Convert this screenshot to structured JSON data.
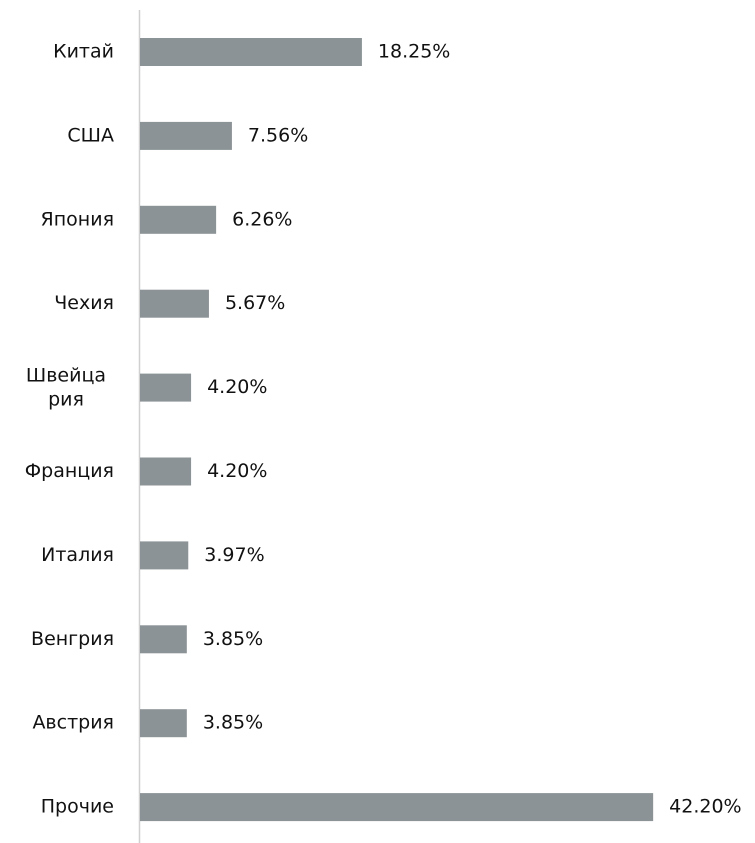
{
  "chart_data": {
    "type": "bar",
    "orientation": "horizontal",
    "categories": [
      "Китай",
      "США",
      "Япония",
      "Чехия",
      "Швейцария",
      "Франция",
      "Италия",
      "Венгрия",
      "Австрия",
      "Прочие"
    ],
    "values": [
      18.25,
      7.56,
      6.26,
      5.67,
      4.2,
      4.2,
      3.97,
      3.85,
      3.85,
      42.2
    ],
    "value_labels": [
      "18.25%",
      "7.56%",
      "6.26%",
      "5.67%",
      "4.20%",
      "4.20%",
      "3.97%",
      "3.85%",
      "3.85%",
      "42.20%"
    ],
    "color": "#8c9396"
  }
}
